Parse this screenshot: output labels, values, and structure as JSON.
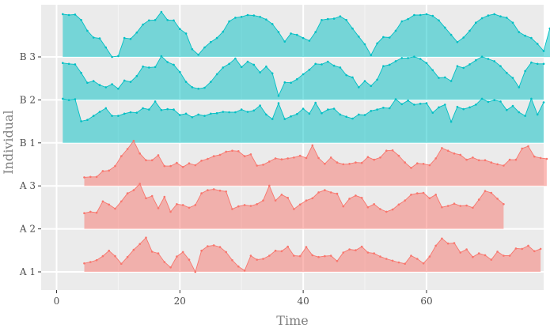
{
  "chart_data": {
    "type": "area",
    "xlabel": "Time",
    "ylabel": "Individual",
    "xlim": [
      -2.5,
      79
    ],
    "x_ticks": [
      0,
      20,
      40,
      60
    ],
    "x_tick_labels": [
      "0",
      "20",
      "40",
      "60"
    ],
    "grid": true,
    "legend": "none",
    "group_colors": {
      "A": "#F8766D",
      "B": "#00BFC4"
    },
    "rows": [
      {
        "label": "B 3",
        "group": "B",
        "start": 1,
        "y": [
          0.95,
          0.93,
          0.94,
          0.82,
          0.58,
          0.43,
          0.41,
          0.21,
          0.0,
          0.02,
          0.42,
          0.4,
          0.54,
          0.72,
          0.81,
          0.82,
          1.0,
          0.82,
          0.81,
          0.62,
          0.52,
          0.17,
          0.05,
          0.21,
          0.33,
          0.42,
          0.56,
          0.79,
          0.87,
          0.89,
          0.93,
          0.92,
          0.89,
          0.83,
          0.73,
          0.55,
          0.34,
          0.52,
          0.49,
          0.42,
          0.36,
          0.55,
          0.82,
          0.84,
          0.85,
          0.9,
          0.82,
          0.63,
          0.45,
          0.28,
          0.04,
          0.3,
          0.44,
          0.43,
          0.58,
          0.79,
          0.84,
          0.93,
          0.93,
          0.95,
          0.91,
          0.81,
          0.65,
          0.49,
          0.33,
          0.43,
          0.58,
          0.76,
          0.86,
          0.92,
          0.95,
          0.9,
          0.87,
          0.76,
          0.55,
          0.47,
          0.42,
          0.29,
          0.13,
          0.63,
          0.78,
          0.79,
          0.88
        ]
      },
      {
        "label": "B 2",
        "group": "B",
        "start": 1,
        "y": [
          0.82,
          0.8,
          0.79,
          0.6,
          0.38,
          0.42,
          0.33,
          0.28,
          0.35,
          0.25,
          0.43,
          0.4,
          0.53,
          0.74,
          0.72,
          0.73,
          0.97,
          0.84,
          0.78,
          0.62,
          0.4,
          0.28,
          0.25,
          0.27,
          0.4,
          0.57,
          0.72,
          0.8,
          0.92,
          0.73,
          0.85,
          0.78,
          0.61,
          0.74,
          0.59,
          0.09,
          0.39,
          0.38,
          0.46,
          0.57,
          0.67,
          0.8,
          0.79,
          0.85,
          0.76,
          0.72,
          0.55,
          0.5,
          0.28,
          0.42,
          0.31,
          0.45,
          0.75,
          0.78,
          0.86,
          0.93,
          0.93,
          0.96,
          0.91,
          0.82,
          0.66,
          0.49,
          0.5,
          0.42,
          0.75,
          0.71,
          0.79,
          0.88,
          0.96,
          0.91,
          0.86,
          0.75,
          0.6,
          0.49,
          0.28,
          0.64,
          0.83,
          0.8,
          0.8
        ]
      },
      {
        "label": "B 1",
        "group": "B",
        "start": 1,
        "y": [
          0.98,
          0.95,
          0.97,
          0.48,
          0.51,
          0.6,
          0.69,
          0.77,
          0.6,
          0.6,
          0.65,
          0.68,
          0.67,
          0.77,
          0.74,
          0.92,
          0.73,
          0.75,
          0.74,
          0.62,
          0.65,
          0.57,
          0.63,
          0.6,
          0.65,
          0.66,
          0.69,
          0.68,
          0.68,
          0.74,
          0.69,
          0.72,
          0.83,
          0.63,
          0.53,
          0.88,
          0.53,
          0.59,
          0.64,
          0.76,
          0.65,
          0.89,
          0.66,
          0.74,
          0.76,
          0.63,
          0.58,
          0.54,
          0.63,
          0.62,
          0.71,
          0.74,
          0.78,
          0.77,
          0.97,
          0.86,
          0.94,
          0.85,
          0.87,
          0.88,
          0.67,
          0.79,
          0.85,
          0.47,
          0.8,
          0.75,
          0.79,
          0.85,
          0.98,
          0.91,
          0.95,
          0.92,
          0.73,
          0.82,
          0.68,
          0.6,
          0.98,
          0.63,
          0.9
        ]
      },
      {
        "label": "A 3",
        "group": "A",
        "start": 4.5,
        "y": [
          0.19,
          0.2,
          0.2,
          0.33,
          0.34,
          0.44,
          0.66,
          0.82,
          1.0,
          0.72,
          0.57,
          0.57,
          0.68,
          0.44,
          0.44,
          0.51,
          0.42,
          0.5,
          0.46,
          0.56,
          0.6,
          0.66,
          0.69,
          0.76,
          0.78,
          0.77,
          0.66,
          0.7,
          0.45,
          0.47,
          0.54,
          0.61,
          0.59,
          0.61,
          0.63,
          0.67,
          0.62,
          0.9,
          0.62,
          0.49,
          0.63,
          0.52,
          0.48,
          0.49,
          0.52,
          0.51,
          0.64,
          0.58,
          0.63,
          0.78,
          0.79,
          0.67,
          0.52,
          0.4,
          0.5,
          0.49,
          0.46,
          0.61,
          0.84,
          0.78,
          0.72,
          0.69,
          0.58,
          0.63,
          0.57,
          0.57,
          0.52,
          0.48,
          0.45,
          0.58,
          0.58,
          0.83,
          0.88,
          0.65,
          0.62,
          0.6
        ]
      },
      {
        "label": "A 2",
        "group": "A",
        "start": 4.5,
        "y": [
          0.35,
          0.38,
          0.36,
          0.61,
          0.54,
          0.45,
          0.61,
          0.79,
          0.86,
          1.0,
          0.68,
          0.73,
          0.46,
          0.71,
          0.38,
          0.55,
          0.53,
          0.47,
          0.53,
          0.79,
          0.86,
          0.88,
          0.85,
          0.83,
          0.44,
          0.5,
          0.53,
          0.51,
          0.55,
          0.63,
          0.96,
          0.63,
          0.76,
          0.69,
          0.44,
          0.54,
          0.63,
          0.68,
          0.81,
          0.86,
          0.81,
          0.78,
          0.5,
          0.67,
          0.74,
          0.69,
          0.48,
          0.55,
          0.44,
          0.38,
          0.43,
          0.54,
          0.63,
          0.76,
          0.79,
          0.8,
          0.68,
          0.76,
          0.48,
          0.51,
          0.56,
          0.51,
          0.52,
          0.47,
          0.65,
          0.84,
          0.8,
          0.67,
          0.55
        ]
      },
      {
        "label": "A 1",
        "group": "A",
        "start": 4.5,
        "y": [
          0.19,
          0.22,
          0.26,
          0.35,
          0.47,
          0.35,
          0.18,
          0.33,
          0.49,
          0.62,
          0.76,
          0.45,
          0.41,
          0.22,
          0.1,
          0.34,
          0.44,
          0.27,
          0.0,
          0.47,
          0.57,
          0.59,
          0.55,
          0.44,
          0.26,
          0.12,
          0.03,
          0.36,
          0.27,
          0.29,
          0.36,
          0.47,
          0.46,
          0.56,
          0.36,
          0.35,
          0.55,
          0.37,
          0.33,
          0.35,
          0.36,
          0.24,
          0.43,
          0.5,
          0.48,
          0.56,
          0.43,
          0.41,
          0.34,
          0.29,
          0.25,
          0.21,
          0.18,
          0.36,
          0.29,
          0.19,
          0.34,
          0.58,
          0.74,
          0.63,
          0.64,
          0.43,
          0.5,
          0.33,
          0.41,
          0.37,
          0.27,
          0.45,
          0.36,
          0.36,
          0.52,
          0.51,
          0.58,
          0.46,
          0.51
        ]
      }
    ]
  }
}
